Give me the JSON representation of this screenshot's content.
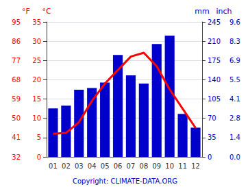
{
  "chart_data": {
    "type": "bar",
    "categories": [
      "01",
      "02",
      "03",
      "04",
      "05",
      "06",
      "07",
      "08",
      "09",
      "10",
      "11",
      "12"
    ],
    "series": [
      {
        "type": "bar",
        "axis": "y2",
        "color": "#0000cc",
        "values": [
          88,
          93,
          122,
          125,
          135,
          185,
          148,
          133,
          205,
          220,
          78,
          53
        ]
      },
      {
        "type": "line",
        "axis": "y",
        "color": "#ff0000",
        "values": [
          6.0,
          6.2,
          9.0,
          14.5,
          19.0,
          22.5,
          26.0,
          27.0,
          23.5,
          17.5,
          12.5,
          7.5
        ]
      }
    ],
    "ylabel": "°C",
    "ylim": [
      0,
      35
    ],
    "yticks": [
      0,
      5,
      10,
      15,
      20,
      25,
      30,
      35
    ],
    "y2label": "mm",
    "y2lim": [
      0,
      245
    ],
    "y2ticks": [
      0,
      35,
      70,
      105,
      140,
      175,
      210,
      245
    ],
    "y3label": "°F",
    "y3lim": [
      0,
      35
    ],
    "y3ticks": [
      {
        "value": 0,
        "label": "32"
      },
      {
        "value": 5,
        "label": "41"
      },
      {
        "value": 10,
        "label": "50"
      },
      {
        "value": 15,
        "label": "59"
      },
      {
        "value": 20,
        "label": "68"
      },
      {
        "value": 25,
        "label": "77"
      },
      {
        "value": 30,
        "label": "86"
      },
      {
        "value": 35,
        "label": "95"
      }
    ],
    "y4label": "inch",
    "y4lim": [
      0,
      245
    ],
    "y4ticks": [
      {
        "value": 0,
        "label": "0.0"
      },
      {
        "value": 35,
        "label": "1.4"
      },
      {
        "value": 70,
        "label": "2.8"
      },
      {
        "value": 105,
        "label": "4.1"
      },
      {
        "value": 140,
        "label": "5.5"
      },
      {
        "value": 175,
        "label": "6.9"
      },
      {
        "value": 210,
        "label": "8.3"
      },
      {
        "value": 245,
        "label": "9.6"
      }
    ],
    "annotations": [
      "Copyright: CLIMATE-DATA.ORG"
    ],
    "grid": true
  }
}
